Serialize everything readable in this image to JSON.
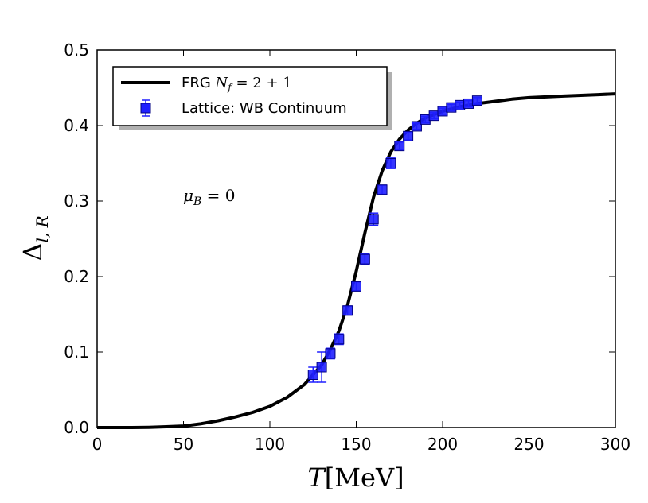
{
  "chart_data": {
    "type": "line",
    "title": "",
    "xlabel": "T[MeV]",
    "ylabel": "Δl,R",
    "xlim": [
      0,
      300
    ],
    "ylim": [
      0.0,
      0.5
    ],
    "x_ticks": [
      0,
      50,
      100,
      150,
      200,
      250,
      300
    ],
    "x_tick_labels": [
      "0",
      "50",
      "100",
      "150",
      "200",
      "250",
      "300"
    ],
    "y_ticks": [
      0.0,
      0.1,
      0.2,
      0.3,
      0.4,
      0.5
    ],
    "y_tick_labels": [
      "0.0",
      "0.1",
      "0.2",
      "0.3",
      "0.4",
      "0.5"
    ],
    "grid": false,
    "legend_position": "top-left",
    "annotation": "μB = 0",
    "series": [
      {
        "name": "FRG Nf = 2+1",
        "legend_label": "FRG",
        "legend_math": "Nf = 2 + 1",
        "kind": "line",
        "color": "#000000",
        "x": [
          0,
          20,
          30,
          40,
          50,
          60,
          70,
          80,
          90,
          100,
          110,
          120,
          130,
          135,
          140,
          145,
          150,
          155,
          160,
          165,
          170,
          175,
          180,
          185,
          190,
          200,
          210,
          220,
          230,
          240,
          250,
          260,
          270,
          280,
          290,
          300
        ],
        "y": [
          0.0,
          0.0,
          0.0003,
          0.001,
          0.002,
          0.005,
          0.009,
          0.014,
          0.02,
          0.028,
          0.04,
          0.057,
          0.083,
          0.103,
          0.128,
          0.162,
          0.207,
          0.258,
          0.305,
          0.34,
          0.365,
          0.382,
          0.394,
          0.403,
          0.41,
          0.419,
          0.425,
          0.429,
          0.432,
          0.435,
          0.437,
          0.438,
          0.439,
          0.44,
          0.441,
          0.442
        ]
      },
      {
        "name": "Lattice: WB Continuum",
        "legend_label": "Lattice: WB Continuum",
        "kind": "scatter",
        "color": "#1f1fff",
        "x": [
          125,
          130,
          135,
          140,
          145,
          150,
          155,
          160,
          165,
          170,
          175,
          180,
          185,
          190,
          195,
          200,
          205,
          210,
          215,
          220
        ],
        "y": [
          0.07,
          0.08,
          0.098,
          0.117,
          0.155,
          0.187,
          0.223,
          0.276,
          0.315,
          0.35,
          0.373,
          0.386,
          0.399,
          0.408,
          0.413,
          0.419,
          0.424,
          0.427,
          0.429,
          0.433
        ],
        "err": [
          0.01,
          0.02,
          0.007,
          0.007,
          0.006,
          0.006,
          0.007,
          0.008,
          0.006,
          0.007,
          0.005,
          0.005,
          0.004,
          0.004,
          0.004,
          0.004,
          0.004,
          0.004,
          0.004,
          0.004
        ]
      }
    ]
  }
}
